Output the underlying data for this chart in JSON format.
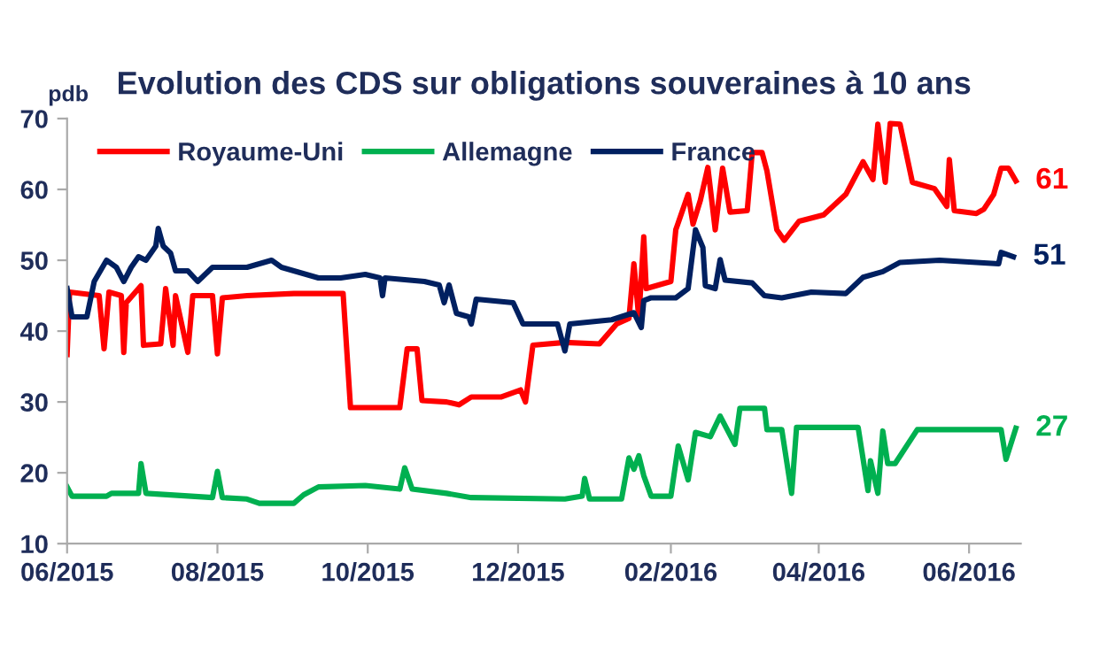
{
  "chart_data": {
    "type": "line",
    "title": "Evolution des CDS sur obligations souveraines à 10 ans",
    "ylabel": "pdb",
    "xlim": [
      "2015-06-01",
      "2016-06-22"
    ],
    "ylim": [
      10,
      70
    ],
    "yticks": [
      10,
      20,
      30,
      40,
      50,
      60,
      70
    ],
    "xticks": [
      {
        "value": "2015-06-01",
        "label": "06/2015"
      },
      {
        "value": "2015-08-01",
        "label": "08/2015"
      },
      {
        "value": "2015-10-01",
        "label": "10/2015"
      },
      {
        "value": "2015-12-01",
        "label": "12/2015"
      },
      {
        "value": "2016-02-01",
        "label": "02/2016"
      },
      {
        "value": "2016-04-01",
        "label": "04/2016"
      },
      {
        "value": "2016-06-01",
        "label": "06/2016"
      }
    ],
    "grid": false,
    "legend": "top left",
    "marker": "none",
    "line_style": "solid",
    "series": [
      {
        "name": "Royaume-Uni",
        "color": "#ff0000",
        "x": [
          "2015-06-01",
          "2015-06-02",
          "2015-06-14",
          "2015-06-16",
          "2015-06-18",
          "2015-06-23",
          "2015-06-24",
          "2015-06-25",
          "2015-07-01",
          "2015-07-02",
          "2015-07-09",
          "2015-07-11",
          "2015-07-14",
          "2015-07-15",
          "2015-07-20",
          "2015-07-22",
          "2015-07-30",
          "2015-08-01",
          "2015-08-03",
          "2015-08-13",
          "2015-09-01",
          "2015-09-21",
          "2015-09-24",
          "2015-10-14",
          "2015-10-17",
          "2015-10-21",
          "2015-10-23",
          "2015-11-02",
          "2015-11-07",
          "2015-11-12",
          "2015-11-24",
          "2015-12-02",
          "2015-12-04",
          "2015-12-07",
          "2015-12-20",
          "2016-01-03",
          "2016-01-10",
          "2016-01-15",
          "2016-01-17",
          "2016-01-19",
          "2016-01-21",
          "2016-01-22",
          "2016-02-01",
          "2016-02-03",
          "2016-02-08",
          "2016-02-10",
          "2016-02-13",
          "2016-02-16",
          "2016-02-19",
          "2016-02-22",
          "2016-02-25",
          "2016-03-03",
          "2016-03-05",
          "2016-03-09",
          "2016-03-11",
          "2016-03-15",
          "2016-03-18",
          "2016-03-24",
          "2016-04-03",
          "2016-04-12",
          "2016-04-19",
          "2016-04-23",
          "2016-04-25",
          "2016-04-28",
          "2016-04-30",
          "2016-05-04",
          "2016-05-09",
          "2016-05-18",
          "2016-05-23",
          "2016-05-24",
          "2016-05-26",
          "2016-06-04",
          "2016-06-07",
          "2016-06-11",
          "2016-06-14",
          "2016-06-17",
          "2016-06-20"
        ],
        "values": [
          36.7,
          45.5,
          45,
          37.5,
          45.5,
          45,
          37,
          44,
          46.4,
          38,
          38.2,
          46,
          38,
          45,
          37,
          45,
          45,
          36.8,
          44.7,
          45,
          45.3,
          45.3,
          29.2,
          29.2,
          37.5,
          37.5,
          30.2,
          30,
          29.6,
          30.7,
          30.7,
          31.7,
          30,
          38,
          38.4,
          38.2,
          41,
          41.8,
          49.5,
          41.8,
          53.3,
          46,
          47,
          54.3,
          59.3,
          55.1,
          58.5,
          63.1,
          54.3,
          63,
          56.8,
          57,
          65.2,
          65.2,
          62.6,
          54.3,
          52.8,
          55.5,
          56.4,
          59.3,
          63.9,
          61.4,
          69.2,
          61,
          69.3,
          69.2,
          61,
          60.1,
          57.6,
          64.2,
          57,
          56.6,
          57.2,
          59.3,
          63,
          63,
          61.2
        ]
      },
      {
        "name": "Allemagne",
        "color": "#00b050",
        "x": [
          "2015-06-01",
          "2015-06-03",
          "2015-06-17",
          "2015-06-19",
          "2015-06-30",
          "2015-07-01",
          "2015-07-03",
          "2015-07-30",
          "2015-08-01",
          "2015-08-03",
          "2015-08-13",
          "2015-08-18",
          "2015-09-01",
          "2015-09-05",
          "2015-09-11",
          "2015-09-30",
          "2015-10-14",
          "2015-10-16",
          "2015-10-19",
          "2015-11-02",
          "2015-11-12",
          "2015-12-20",
          "2015-12-27",
          "2015-12-28",
          "2015-12-30",
          "2016-01-12",
          "2016-01-15",
          "2016-01-17",
          "2016-01-19",
          "2016-01-21",
          "2016-01-24",
          "2016-02-01",
          "2016-02-04",
          "2016-02-08",
          "2016-02-11",
          "2016-02-17",
          "2016-02-21",
          "2016-02-27",
          "2016-02-29",
          "2016-03-10",
          "2016-03-11",
          "2016-03-17",
          "2016-03-21",
          "2016-03-23",
          "2016-04-17",
          "2016-04-21",
          "2016-04-22",
          "2016-04-25",
          "2016-04-27",
          "2016-04-29",
          "2016-05-02",
          "2016-05-11",
          "2016-06-14",
          "2016-06-16",
          "2016-06-20"
        ],
        "values": [
          18,
          16.7,
          16.7,
          17.1,
          17.1,
          21.3,
          17.1,
          16.5,
          20.2,
          16.5,
          16.3,
          15.7,
          15.7,
          16.9,
          18,
          18.2,
          17.7,
          20.7,
          17.7,
          17.1,
          16.5,
          16.3,
          16.7,
          19.2,
          16.3,
          16.3,
          22.1,
          20.5,
          22.4,
          19.6,
          16.7,
          16.7,
          23.8,
          19,
          25.7,
          25.1,
          28,
          24,
          29.1,
          29.1,
          26.1,
          26.1,
          17.1,
          26.4,
          26.4,
          17.5,
          21.7,
          17.1,
          25.9,
          21.3,
          21.3,
          26.1,
          26.1,
          21.9,
          26.3
        ]
      },
      {
        "name": "France",
        "color": "#002060",
        "x": [
          "2015-06-01",
          "2015-06-03",
          "2015-06-09",
          "2015-06-12",
          "2015-06-17",
          "2015-06-21",
          "2015-06-24",
          "2015-06-27",
          "2015-06-30",
          "2015-07-03",
          "2015-07-07",
          "2015-07-08",
          "2015-07-10",
          "2015-07-13",
          "2015-07-15",
          "2015-07-20",
          "2015-07-24",
          "2015-07-30",
          "2015-08-13",
          "2015-08-23",
          "2015-08-27",
          "2015-09-11",
          "2015-09-20",
          "2015-09-30",
          "2015-10-06",
          "2015-10-07",
          "2015-10-08",
          "2015-10-24",
          "2015-10-30",
          "2015-11-01",
          "2015-11-03",
          "2015-11-06",
          "2015-11-11",
          "2015-11-12",
          "2015-11-14",
          "2015-11-29",
          "2015-12-03",
          "2015-12-14",
          "2015-12-17",
          "2015-12-20",
          "2015-12-22",
          "2016-01-08",
          "2016-01-17",
          "2016-01-20",
          "2016-01-21",
          "2016-01-24",
          "2016-02-03",
          "2016-02-08",
          "2016-02-11",
          "2016-02-14",
          "2016-02-15",
          "2016-02-19",
          "2016-02-21",
          "2016-02-23",
          "2016-03-05",
          "2016-03-10",
          "2016-03-17",
          "2016-03-29",
          "2016-04-12",
          "2016-04-19",
          "2016-04-27",
          "2016-05-04",
          "2016-05-20",
          "2016-06-13",
          "2016-06-14",
          "2016-06-19"
        ],
        "values": [
          46,
          42,
          42,
          47,
          50,
          49,
          47,
          49,
          50.5,
          50,
          52,
          54.5,
          52,
          51,
          48.5,
          48.5,
          47,
          49,
          49,
          50,
          49,
          47.5,
          47.5,
          48,
          47.5,
          45,
          47.5,
          47,
          46.5,
          44,
          46.5,
          42.5,
          42,
          41,
          44.5,
          44,
          41,
          41,
          41,
          37.2,
          41,
          41.6,
          42.6,
          40.5,
          44.3,
          44.7,
          44.7,
          46,
          54.3,
          51.8,
          46.4,
          46,
          50.1,
          47.2,
          46.8,
          45,
          44.7,
          45.5,
          45.3,
          47.6,
          48.4,
          49.7,
          50,
          49.5,
          51.1,
          50.5
        ]
      }
    ],
    "annotations": [
      {
        "text": "61",
        "x": "2016-06-20",
        "y": 61.2
      },
      {
        "text": "27",
        "x": "2016-06-20",
        "y": 26.3
      },
      {
        "text": "51",
        "x": "2016-06-19",
        "y": 50.5
      }
    ]
  }
}
